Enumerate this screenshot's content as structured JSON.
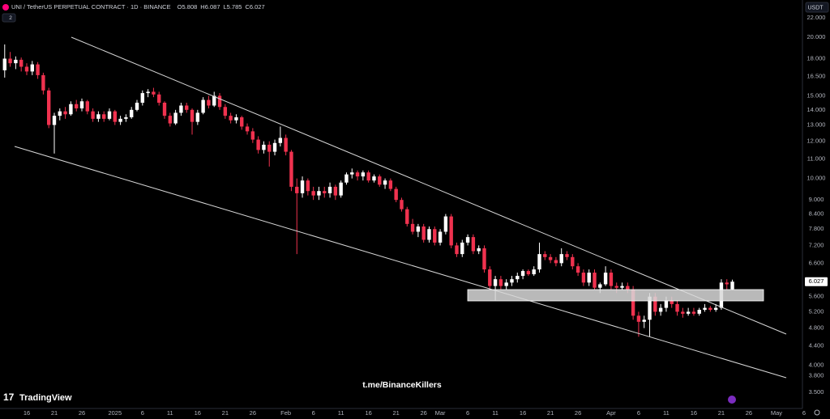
{
  "chart_data": {
    "type": "candlestick",
    "title": "UNI / TetherUS PERPETUAL CONTRACT · 1D · BINANCE",
    "ohlc_labels": [
      "O",
      "H",
      "L",
      "C"
    ],
    "currency": "USDT",
    "indicator_count": 2,
    "branding": "TradingView",
    "watermark": "t.me/BinanceKillers",
    "log_scale": true,
    "grid": false,
    "up_color": "#ffffff",
    "down_color": "#f0324f",
    "ylim": [
      3.3,
      24
    ],
    "yticks": [
      {
        "value": 22,
        "label": "22.000"
      },
      {
        "value": 20,
        "label": "20.000"
      },
      {
        "value": 18,
        "label": "18.000"
      },
      {
        "value": 16.5,
        "label": "16.500"
      },
      {
        "value": 15,
        "label": "15.000"
      },
      {
        "value": 14,
        "label": "14.000"
      },
      {
        "value": 13,
        "label": "13.000"
      },
      {
        "value": 12,
        "label": "12.000"
      },
      {
        "value": 11,
        "label": "11.000"
      },
      {
        "value": 10,
        "label": "10.000"
      },
      {
        "value": 9,
        "label": "9.000"
      },
      {
        "value": 8.4,
        "label": "8.400"
      },
      {
        "value": 7.8,
        "label": "7.800"
      },
      {
        "value": 7.2,
        "label": "7.200"
      },
      {
        "value": 6.6,
        "label": "6.600"
      },
      {
        "value": 5.6,
        "label": "5.600"
      },
      {
        "value": 5.2,
        "label": "5.200"
      },
      {
        "value": 4.8,
        "label": "4.800"
      },
      {
        "value": 4.4,
        "label": "4.400"
      },
      {
        "value": 4,
        "label": "4.000"
      },
      {
        "value": 3.8,
        "label": "3.800"
      },
      {
        "value": 3.5,
        "label": "3.500"
      }
    ],
    "xlim": [
      -0.85,
      145.3
    ],
    "xticks": [
      {
        "value": 4,
        "label": "16"
      },
      {
        "value": 9,
        "label": "21"
      },
      {
        "value": 14,
        "label": "26"
      },
      {
        "value": 20,
        "label": "2025"
      },
      {
        "value": 25,
        "label": "6"
      },
      {
        "value": 30,
        "label": "11"
      },
      {
        "value": 35,
        "label": "16"
      },
      {
        "value": 40,
        "label": "21"
      },
      {
        "value": 45,
        "label": "26"
      },
      {
        "value": 51,
        "label": "Feb"
      },
      {
        "value": 56,
        "label": "6"
      },
      {
        "value": 61,
        "label": "11"
      },
      {
        "value": 66,
        "label": "16"
      },
      {
        "value": 71,
        "label": "21"
      },
      {
        "value": 76,
        "label": "26"
      },
      {
        "value": 79,
        "label": "Mar"
      },
      {
        "value": 84,
        "label": "6"
      },
      {
        "value": 89,
        "label": "11"
      },
      {
        "value": 94,
        "label": "16"
      },
      {
        "value": 99,
        "label": "21"
      },
      {
        "value": 104,
        "label": "26"
      },
      {
        "value": 110,
        "label": "Apr"
      },
      {
        "value": 115,
        "label": "6"
      },
      {
        "value": 120,
        "label": "11"
      },
      {
        "value": 125,
        "label": "16"
      },
      {
        "value": 130,
        "label": "21"
      },
      {
        "value": 135,
        "label": "26"
      },
      {
        "value": 140,
        "label": "May"
      },
      {
        "value": 145,
        "label": "6"
      }
    ],
    "candles": [
      [
        17.0,
        19.3,
        16.4,
        18.0
      ],
      [
        18.0,
        18.6,
        17.3,
        17.6
      ],
      [
        17.6,
        18.2,
        17.1,
        17.9
      ],
      [
        17.9,
        18.1,
        16.9,
        17.3
      ],
      [
        17.3,
        17.6,
        16.6,
        16.9
      ],
      [
        16.9,
        17.8,
        16.6,
        17.5
      ],
      [
        17.5,
        17.7,
        16.3,
        16.6
      ],
      [
        16.6,
        16.8,
        15.1,
        15.4
      ],
      [
        15.4,
        15.6,
        12.8,
        13.0
      ],
      [
        13.0,
        13.8,
        11.3,
        13.6
      ],
      [
        13.6,
        14.1,
        13.3,
        13.9
      ],
      [
        13.9,
        14.2,
        13.4,
        13.7
      ],
      [
        13.7,
        14.6,
        13.6,
        14.4
      ],
      [
        14.4,
        14.7,
        13.9,
        14.1
      ],
      [
        14.1,
        14.8,
        13.9,
        14.6
      ],
      [
        14.6,
        14.7,
        13.7,
        13.9
      ],
      [
        13.9,
        14.1,
        13.2,
        13.4
      ],
      [
        13.4,
        13.9,
        13.2,
        13.7
      ],
      [
        13.7,
        13.9,
        13.2,
        13.4
      ],
      [
        13.4,
        14.1,
        13.3,
        13.9
      ],
      [
        13.9,
        14.0,
        13.0,
        13.2
      ],
      [
        13.2,
        13.6,
        13.0,
        13.4
      ],
      [
        13.4,
        13.7,
        13.2,
        13.5
      ],
      [
        13.5,
        14.2,
        13.4,
        14.0
      ],
      [
        14.0,
        14.7,
        13.9,
        14.5
      ],
      [
        14.5,
        15.4,
        14.3,
        15.2
      ],
      [
        15.2,
        15.5,
        14.9,
        15.3
      ],
      [
        15.3,
        15.6,
        14.9,
        15.1
      ],
      [
        15.1,
        15.3,
        14.3,
        14.5
      ],
      [
        14.5,
        14.6,
        13.4,
        13.6
      ],
      [
        13.6,
        13.8,
        12.9,
        13.1
      ],
      [
        13.1,
        14.0,
        13.0,
        13.8
      ],
      [
        13.8,
        14.5,
        13.6,
        14.3
      ],
      [
        14.3,
        14.5,
        13.8,
        14.0
      ],
      [
        14.0,
        14.1,
        12.4,
        13.2
      ],
      [
        13.2,
        14.0,
        13.0,
        13.8
      ],
      [
        13.8,
        14.9,
        13.7,
        14.7
      ],
      [
        14.7,
        15.0,
        14.1,
        14.3
      ],
      [
        14.3,
        15.3,
        14.2,
        15.0
      ],
      [
        15.0,
        15.2,
        14.0,
        14.2
      ],
      [
        14.2,
        14.4,
        13.4,
        13.6
      ],
      [
        13.6,
        13.8,
        13.1,
        13.3
      ],
      [
        13.3,
        13.7,
        13.1,
        13.5
      ],
      [
        13.5,
        13.6,
        12.7,
        12.9
      ],
      [
        12.9,
        13.1,
        12.4,
        12.6
      ],
      [
        12.6,
        12.8,
        11.9,
        12.1
      ],
      [
        12.1,
        12.3,
        11.3,
        11.5
      ],
      [
        11.5,
        12.0,
        11.3,
        11.8
      ],
      [
        11.8,
        12.0,
        10.6,
        11.4
      ],
      [
        11.4,
        12.1,
        11.2,
        11.9
      ],
      [
        11.9,
        12.9,
        11.7,
        12.2
      ],
      [
        12.2,
        12.4,
        11.2,
        11.4
      ],
      [
        11.4,
        11.5,
        9.4,
        9.6
      ],
      [
        9.6,
        10.0,
        6.9,
        9.3
      ],
      [
        9.3,
        10.1,
        9.1,
        9.9
      ],
      [
        9.9,
        10.0,
        9.2,
        9.4
      ],
      [
        9.4,
        9.6,
        9.0,
        9.2
      ],
      [
        9.2,
        9.6,
        9.0,
        9.4
      ],
      [
        9.4,
        9.6,
        9.1,
        9.3
      ],
      [
        9.3,
        9.8,
        9.1,
        9.6
      ],
      [
        9.6,
        9.7,
        9.0,
        9.2
      ],
      [
        9.2,
        9.9,
        9.1,
        9.8
      ],
      [
        9.8,
        10.3,
        9.7,
        10.2
      ],
      [
        10.2,
        10.5,
        10.0,
        10.3
      ],
      [
        10.3,
        10.4,
        9.9,
        10.1
      ],
      [
        10.1,
        10.4,
        9.9,
        10.3
      ],
      [
        10.3,
        10.4,
        9.8,
        9.9
      ],
      [
        9.9,
        10.2,
        9.8,
        10.1
      ],
      [
        10.1,
        10.2,
        9.6,
        9.7
      ],
      [
        9.7,
        10.0,
        9.5,
        9.9
      ],
      [
        9.9,
        10.0,
        9.4,
        9.5
      ],
      [
        9.5,
        9.6,
        8.9,
        9.0
      ],
      [
        9.0,
        9.1,
        8.5,
        8.6
      ],
      [
        8.6,
        8.7,
        7.9,
        8.0
      ],
      [
        8.0,
        8.2,
        7.6,
        7.7
      ],
      [
        7.7,
        8.0,
        7.5,
        7.9
      ],
      [
        7.9,
        8.0,
        7.3,
        7.4
      ],
      [
        7.4,
        7.9,
        7.3,
        7.8
      ],
      [
        7.8,
        7.9,
        7.2,
        7.3
      ],
      [
        7.3,
        7.8,
        7.2,
        7.7
      ],
      [
        7.7,
        8.4,
        7.6,
        8.3
      ],
      [
        8.3,
        8.4,
        7.1,
        7.2
      ],
      [
        7.2,
        7.3,
        6.8,
        6.9
      ],
      [
        6.9,
        7.4,
        6.8,
        7.3
      ],
      [
        7.3,
        7.6,
        7.2,
        7.5
      ],
      [
        7.5,
        7.6,
        6.9,
        7.0
      ],
      [
        7.0,
        7.2,
        6.9,
        7.1
      ],
      [
        7.1,
        7.2,
        6.3,
        6.4
      ],
      [
        6.4,
        6.5,
        5.8,
        5.9
      ],
      [
        5.9,
        6.2,
        5.5,
        6.1
      ],
      [
        6.1,
        6.2,
        5.8,
        5.9
      ],
      [
        5.9,
        6.1,
        5.8,
        6.0
      ],
      [
        6.0,
        6.2,
        5.9,
        6.1
      ],
      [
        6.1,
        6.3,
        6.0,
        6.2
      ],
      [
        6.2,
        6.4,
        6.1,
        6.35
      ],
      [
        6.35,
        6.4,
        6.2,
        6.25
      ],
      [
        6.25,
        6.5,
        6.2,
        6.4
      ],
      [
        6.4,
        7.3,
        6.3,
        6.9
      ],
      [
        6.9,
        7.0,
        6.7,
        6.8
      ],
      [
        6.8,
        6.9,
        6.6,
        6.7
      ],
      [
        6.7,
        6.8,
        6.5,
        6.6
      ],
      [
        6.6,
        7.1,
        6.5,
        6.9
      ],
      [
        6.9,
        7.0,
        6.7,
        6.8
      ],
      [
        6.8,
        6.9,
        6.4,
        6.5
      ],
      [
        6.5,
        6.6,
        6.2,
        6.3
      ],
      [
        6.3,
        6.4,
        5.9,
        6.0
      ],
      [
        6.0,
        6.4,
        5.9,
        6.3
      ],
      [
        6.3,
        6.4,
        5.8,
        5.85
      ],
      [
        5.85,
        6.0,
        5.7,
        5.95
      ],
      [
        5.95,
        6.5,
        5.9,
        6.3
      ],
      [
        6.3,
        6.4,
        5.8,
        5.9
      ],
      [
        5.9,
        6.0,
        5.7,
        5.85
      ],
      [
        5.85,
        6.0,
        5.8,
        5.9
      ],
      [
        5.9,
        6.0,
        5.7,
        5.8
      ],
      [
        5.8,
        5.9,
        5.0,
        5.1
      ],
      [
        5.1,
        5.2,
        4.6,
        4.95
      ],
      [
        4.95,
        5.1,
        4.8,
        5.0
      ],
      [
        5.0,
        5.7,
        4.6,
        5.6
      ],
      [
        5.6,
        5.7,
        5.1,
        5.2
      ],
      [
        5.2,
        5.4,
        5.1,
        5.3
      ],
      [
        5.3,
        5.6,
        5.2,
        5.5
      ],
      [
        5.5,
        5.6,
        5.3,
        5.4
      ],
      [
        5.4,
        5.5,
        5.1,
        5.2
      ],
      [
        5.2,
        5.3,
        5.05,
        5.15
      ],
      [
        5.15,
        5.3,
        5.1,
        5.2
      ],
      [
        5.2,
        5.3,
        5.1,
        5.15
      ],
      [
        5.15,
        5.3,
        5.1,
        5.25
      ],
      [
        5.25,
        5.4,
        5.2,
        5.3
      ],
      [
        5.3,
        5.35,
        5.2,
        5.25
      ],
      [
        5.25,
        5.4,
        5.2,
        5.3
      ],
      [
        5.3,
        6.1,
        5.25,
        6.0
      ],
      [
        6.0,
        6.1,
        5.8,
        5.95
      ],
      [
        5.808,
        6.087,
        5.785,
        6.027
      ]
    ]
  }
}
